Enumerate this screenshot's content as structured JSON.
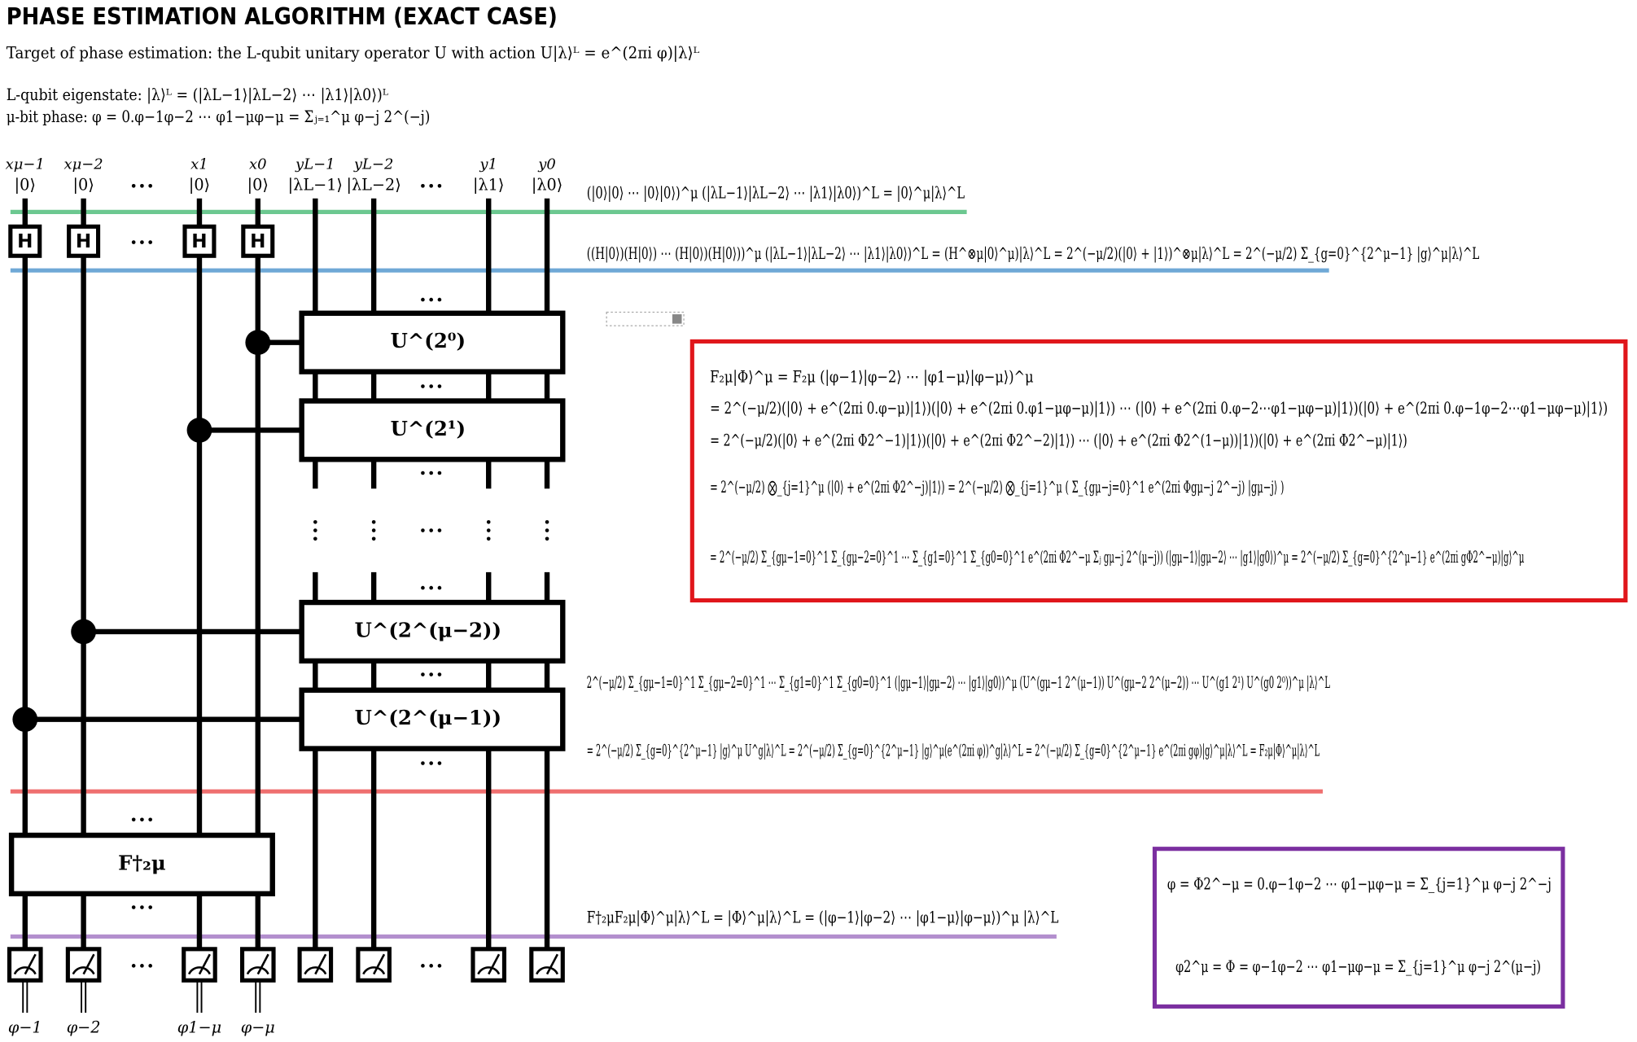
{
  "title": "PHASE ESTIMATION ALGORITHM (EXACT CASE)",
  "intro": [
    "Target of phase estimation: the L-qubit unitary operator U with action U|λ⟩ᴸ = e^(2πi φ)|λ⟩ᴸ",
    "L-qubit eigenstate: |λ⟩ᴸ = (|λL−1⟩|λL−2⟩ ⋯ |λ1⟩|λ0⟩)ᴸ",
    "μ-bit phase: φ = 0.φ−1φ−2 ⋯ φ1−μφ−μ = Σⱼ₌₁^μ φ−j 2^(−j)"
  ],
  "wires": [
    {
      "name": "xμ−1",
      "state": "|0⟩",
      "output": "φ−1"
    },
    {
      "name": "xμ−2",
      "state": "|0⟩",
      "output": "φ−2"
    },
    {
      "name": "x1",
      "state": "|0⟩",
      "output": "φ1−μ"
    },
    {
      "name": "x0",
      "state": "|0⟩",
      "output": "φ−μ"
    },
    {
      "name": "yL−1",
      "state": "|λL−1⟩"
    },
    {
      "name": "yL−2",
      "state": "|λL−2⟩"
    },
    {
      "name": "y1",
      "state": "|λ1⟩"
    },
    {
      "name": "y0",
      "state": "|λ0⟩"
    }
  ],
  "gates": {
    "hadamard": "H",
    "controlled": [
      "U^(2⁰)",
      "U^(2¹)",
      "U^(2^(μ−2))",
      "U^(2^(μ−1))"
    ],
    "qft": "F†₂μ"
  },
  "equations": {
    "stage0": "(|0⟩|0⟩ ⋯ |0⟩|0⟩)^μ (|λL−1⟩|λL−2⟩ ⋯ |λ1⟩|λ0⟩)^L = |0⟩^μ|λ⟩^L",
    "stage1": "((H|0⟩)(H|0⟩) ⋯ (H|0⟩)(H|0⟩))^μ (|λL−1⟩|λL−2⟩ ⋯ |λ1⟩|λ0⟩)^L = (H^⊗μ|0⟩^μ)|λ⟩^L = 2^(−μ/2)(|0⟩ + |1⟩)^⊗μ|λ⟩^L = 2^(−μ/2) Σ_{g=0}^{2^μ−1} |g⟩^μ|λ⟩^L",
    "red_box": [
      "F₂μ|Φ⟩^μ = F₂μ (|φ−1⟩|φ−2⟩ ⋯ |φ1−μ⟩|φ−μ⟩)^μ",
      "= 2^(−μ/2)(|0⟩ + e^(2πi 0.φ−μ)|1⟩)(|0⟩ + e^(2πi 0.φ1−μφ−μ)|1⟩) ⋯ (|0⟩ + e^(2πi 0.φ−2⋯φ1−μφ−μ)|1⟩)(|0⟩ + e^(2πi 0.φ−1φ−2⋯φ1−μφ−μ)|1⟩)",
      "= 2^(−μ/2)(|0⟩ + e^(2πi Φ2^−1)|1⟩)(|0⟩ + e^(2πi Φ2^−2)|1⟩) ⋯ (|0⟩ + e^(2πi Φ2^(1−μ))|1⟩)(|0⟩ + e^(2πi Φ2^−μ)|1⟩)",
      "= 2^(−μ/2) ⨂_{j=1}^μ (|0⟩ + e^(2πi Φ2^−j)|1⟩) = 2^(−μ/2) ⨂_{j=1}^μ ( Σ_{gμ−j=0}^1 e^(2πi Φgμ−j 2^−j) |gμ−j⟩ )",
      "= 2^(−μ/2) Σ_{gμ−1=0}^1 Σ_{gμ−2=0}^1 ⋯ Σ_{g1=0}^1 Σ_{g0=0}^1 e^(2πi Φ2^−μ Σⱼ gμ−j 2^(μ−j)) (|gμ−1⟩|gμ−2⟩ ⋯ |g1⟩|g0⟩)^μ = 2^(−μ/2) Σ_{g=0}^{2^μ−1} e^(2πi gΦ2^−μ)|g⟩^μ"
    ],
    "stage3": [
      "2^(−μ/2) Σ_{gμ−1=0}^1 Σ_{gμ−2=0}^1 ⋯ Σ_{g1=0}^1 Σ_{g0=0}^1 (|gμ−1⟩|gμ−2⟩ ⋯ |g1⟩|g0⟩)^μ (U^(gμ−1 2^(μ−1)) U^(gμ−2 2^(μ−2)) ⋯ U^(g1 2¹) U^(g0 2⁰))^μ |λ⟩^L",
      "= 2^(−μ/2) Σ_{g=0}^{2^μ−1} |g⟩^μ U^g|λ⟩^L = 2^(−μ/2) Σ_{g=0}^{2^μ−1} |g⟩^μ(e^(2πi φ))^g|λ⟩^L = 2^(−μ/2) Σ_{g=0}^{2^μ−1} e^(2πi gφ)|g⟩^μ|λ⟩^L = F₂μ|Φ⟩^μ|λ⟩^L"
    ],
    "stage4": "F†₂μF₂μ|Φ⟩^μ|λ⟩^L = |Φ⟩^μ|λ⟩^L = (|φ−1⟩|φ−2⟩ ⋯ |φ1−μ⟩|φ−μ⟩)^μ |λ⟩^L",
    "purple_box": [
      "φ = Φ2^−μ = 0.φ−1φ−2 ⋯ φ1−μφ−μ = Σ_{j=1}^μ φ−j 2^−j",
      "φ2^μ = Φ = φ−1φ−2 ⋯ φ1−μφ−μ = Σ_{j=1}^μ φ−j 2^(μ−j)"
    ]
  }
}
